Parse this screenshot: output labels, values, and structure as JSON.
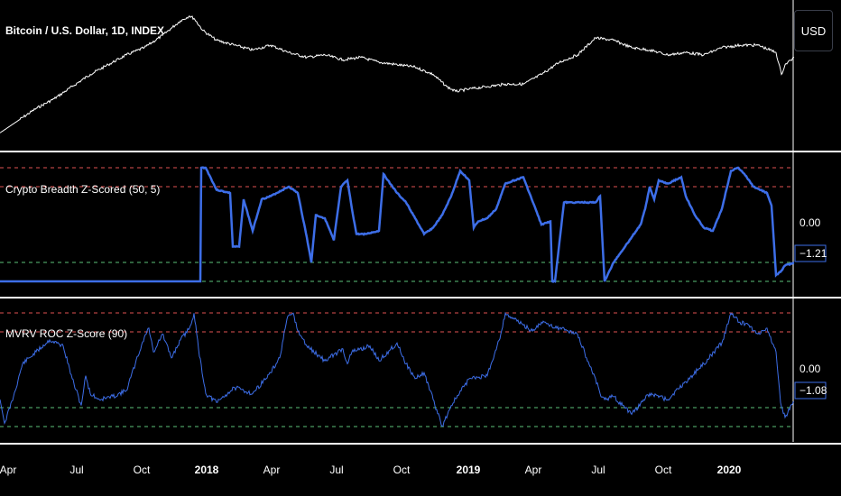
{
  "usd_button": "USD",
  "chart_data": [
    {
      "type": "line",
      "title": "Bitcoin / U.S. Dollar, 1D, INDEX",
      "series": [
        {
          "x": [
            0,
            20,
            40,
            60,
            80,
            100,
            120,
            140,
            160,
            180,
            190,
            200,
            210,
            215,
            225,
            240,
            260,
            280,
            300,
            320,
            340,
            360,
            380,
            400,
            420,
            440,
            460,
            480,
            495,
            505,
            520,
            540,
            560,
            580,
            600,
            620,
            640,
            660,
            680,
            700,
            720,
            740,
            760,
            780,
            800,
            820,
            840,
            860,
            866,
            870,
            880
          ],
          "y": [
            0.02,
            0.12,
            0.22,
            0.3,
            0.4,
            0.5,
            0.58,
            0.66,
            0.72,
            0.82,
            0.88,
            0.94,
            0.98,
            0.96,
            0.86,
            0.78,
            0.74,
            0.7,
            0.74,
            0.68,
            0.64,
            0.66,
            0.62,
            0.64,
            0.6,
            0.58,
            0.56,
            0.5,
            0.4,
            0.36,
            0.38,
            0.4,
            0.42,
            0.42,
            0.5,
            0.6,
            0.66,
            0.8,
            0.78,
            0.72,
            0.7,
            0.66,
            0.68,
            0.66,
            0.72,
            0.74,
            0.74,
            0.68,
            0.5,
            0.58,
            0.64
          ]
        }
      ]
    },
    {
      "type": "line",
      "title": "Crypto Breadth Z-Scored (50, 5)",
      "price_labels": [
        "0.00",
        "−1.21"
      ],
      "series": [
        {
          "x": [
            0,
            222,
            223,
            228,
            240,
            255,
            258,
            265,
            270,
            280,
            290,
            300,
            320,
            330,
            340,
            345,
            350,
            360,
            370,
            378,
            385,
            390,
            395,
            400,
            405,
            420,
            425,
            430,
            440,
            450,
            460,
            470,
            480,
            490,
            500,
            510,
            520,
            525,
            530,
            540,
            550,
            560,
            580,
            600,
            610,
            612,
            615,
            625,
            630,
            660,
            665,
            670,
            680,
            700,
            710,
            715,
            720,
            725,
            730,
            740,
            755,
            760,
            770,
            780,
            790,
            800,
            810,
            818,
            825,
            835,
            850,
            855,
            860,
            865,
            870,
            880
          ],
          "y": [
            -1.8,
            -1.8,
            1.8,
            1.8,
            1.1,
            1.0,
            -0.7,
            -0.7,
            0.8,
            -0.2,
            0.8,
            0.9,
            1.2,
            1.0,
            -0.4,
            -1.2,
            0.3,
            0.2,
            -0.5,
            1.2,
            1.4,
            0.5,
            -0.3,
            -0.3,
            -0.3,
            -0.2,
            1.6,
            1.4,
            1.0,
            0.7,
            0.2,
            -0.3,
            -0.1,
            0.3,
            0.9,
            1.7,
            1.4,
            -0.1,
            0.1,
            0.2,
            0.5,
            1.3,
            1.5,
            0.0,
            0.1,
            -1.8,
            -1.8,
            0.7,
            0.7,
            0.7,
            0.9,
            -1.8,
            -1.2,
            -0.4,
            0.0,
            0.5,
            1.2,
            0.8,
            1.4,
            1.3,
            1.5,
            0.9,
            0.3,
            -0.1,
            -0.2,
            0.5,
            1.7,
            1.8,
            1.6,
            1.2,
            1.0,
            0.6,
            -1.6,
            -1.5,
            -1.3,
            -1.21
          ]
        }
      ]
    },
    {
      "type": "line",
      "title": "MVRV ROC Z-Score (90)",
      "price_labels": [
        "0.00",
        "−1.08"
      ],
      "series": [
        {
          "x": [
            0,
            5,
            15,
            25,
            40,
            55,
            70,
            80,
            90,
            95,
            100,
            110,
            125,
            140,
            150,
            160,
            165,
            170,
            180,
            190,
            200,
            210,
            215,
            220,
            228,
            240,
            260,
            280,
            300,
            310,
            318,
            325,
            330,
            340,
            360,
            380,
            385,
            390,
            410,
            420,
            440,
            450,
            460,
            470,
            480,
            490,
            500,
            520,
            540,
            555,
            560,
            570,
            580,
            590,
            600,
            620,
            640,
            650,
            660,
            665,
            670,
            680,
            690,
            700,
            720,
            740,
            760,
            780,
            800,
            810,
            820,
            830,
            840,
            850,
            860,
            865,
            870,
            880
          ],
          "y": [
            -1.0,
            -1.8,
            -0.9,
            0.2,
            0.6,
            1.0,
            0.8,
            -0.3,
            -1.2,
            -0.2,
            -0.8,
            -1.0,
            -0.9,
            -0.7,
            0.2,
            1.1,
            1.4,
            0.6,
            1.2,
            0.4,
            1.0,
            1.4,
            1.9,
            0.7,
            -0.8,
            -1.1,
            -0.6,
            -0.8,
            -0.1,
            0.4,
            1.7,
            1.9,
            1.3,
            0.8,
            0.3,
            0.7,
            0.2,
            0.6,
            0.8,
            0.3,
            0.9,
            0.2,
            -0.3,
            -0.1,
            -1.0,
            -1.9,
            -1.2,
            -0.3,
            -0.2,
            1.2,
            1.9,
            1.7,
            1.5,
            1.3,
            1.6,
            1.4,
            1.2,
            0.4,
            -0.3,
            -0.8,
            -1.0,
            -0.9,
            -1.2,
            -1.5,
            -0.8,
            -1.0,
            -0.4,
            0.2,
            0.9,
            1.9,
            1.6,
            1.5,
            1.2,
            1.4,
            0.6,
            -1.1,
            -1.6,
            -1.08
          ]
        }
      ]
    }
  ],
  "time_axis": {
    "labels": [
      "Apr",
      "Jul",
      "Oct",
      "2018",
      "Apr",
      "Jul",
      "Oct",
      "2019",
      "Apr",
      "Jul",
      "Oct",
      "2020"
    ],
    "bold": [
      false,
      false,
      false,
      true,
      false,
      false,
      false,
      true,
      false,
      false,
      false,
      true
    ]
  },
  "colors": {
    "price": "#ffffff",
    "indicator": "#3d6ee8",
    "upper_band": "#e05252",
    "lower_band": "#5cc27a",
    "separator": "#ffffff"
  }
}
